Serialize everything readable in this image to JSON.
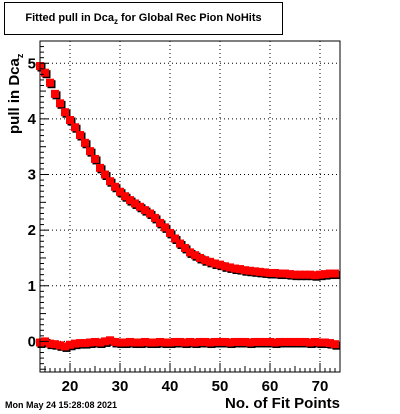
{
  "header": {
    "title_main": "Fitted pull in Dca",
    "title_sub": "z",
    "title_rest": " for Global Rec Pion NoHits"
  },
  "axes": {
    "ylabel_main": "pull in Dca",
    "ylabel_sub": "z",
    "xlabel": "No. of Fit Points"
  },
  "footer": {
    "timestamp": "Mon May 24 15:28:08 2021"
  },
  "colors": {
    "sigma_series": "#ff0000",
    "mean_series": "#ff0000",
    "shadow": "#000000",
    "grid": "#000000"
  },
  "chart_data": {
    "type": "scatter",
    "title": "Fitted pull in Dca_z for Global Rec Pion NoHits",
    "xlabel": "No. of Fit Points",
    "ylabel": "pull in Dca_z",
    "xlim": [
      14,
      74
    ],
    "ylim": [
      -0.55,
      5.4
    ],
    "xticks": [
      20,
      30,
      40,
      50,
      60,
      70
    ],
    "yticks": [
      0,
      1,
      2,
      3,
      4,
      5
    ],
    "grid": true,
    "marker": "square",
    "series": [
      {
        "x": [
          14,
          15,
          16,
          17,
          18,
          19,
          20,
          21,
          22,
          23,
          24,
          25,
          26,
          27,
          28,
          29,
          30,
          31,
          32,
          33,
          34,
          35,
          36,
          37,
          38,
          39,
          40,
          41,
          42,
          43,
          44,
          45,
          46,
          47,
          48,
          49,
          50,
          51,
          52,
          53,
          54,
          55,
          56,
          57,
          58,
          59,
          60,
          61,
          62,
          63,
          64,
          65,
          66,
          67,
          68,
          69,
          70,
          71,
          72,
          73
        ],
        "y": [
          4.95,
          4.83,
          4.65,
          4.45,
          4.28,
          4.12,
          3.98,
          3.85,
          3.71,
          3.57,
          3.42,
          3.28,
          3.12,
          3.0,
          2.88,
          2.78,
          2.69,
          2.61,
          2.54,
          2.48,
          2.42,
          2.36,
          2.3,
          2.22,
          2.13,
          2.05,
          1.95,
          1.85,
          1.76,
          1.68,
          1.6,
          1.55,
          1.5,
          1.46,
          1.43,
          1.4,
          1.38,
          1.35,
          1.33,
          1.31,
          1.3,
          1.28,
          1.27,
          1.26,
          1.25,
          1.24,
          1.23,
          1.23,
          1.22,
          1.22,
          1.21,
          1.2,
          1.2,
          1.2,
          1.2,
          1.19,
          1.2,
          1.21,
          1.22,
          1.22
        ]
      },
      {
        "x": [
          14,
          15,
          16,
          17,
          18,
          19,
          20,
          21,
          22,
          23,
          24,
          25,
          26,
          27,
          28,
          29,
          30,
          31,
          32,
          33,
          34,
          35,
          36,
          37,
          38,
          39,
          40,
          41,
          42,
          43,
          44,
          45,
          46,
          47,
          48,
          49,
          50,
          51,
          52,
          53,
          54,
          55,
          56,
          57,
          58,
          59,
          60,
          61,
          62,
          63,
          64,
          65,
          66,
          67,
          68,
          69,
          70,
          71,
          72,
          73
        ],
        "y": [
          -0.02,
          0.0,
          -0.04,
          -0.05,
          -0.07,
          -0.09,
          -0.06,
          -0.04,
          -0.03,
          -0.03,
          -0.02,
          -0.01,
          -0.02,
          0.0,
          0.02,
          -0.01,
          -0.02,
          -0.02,
          -0.01,
          -0.02,
          -0.02,
          -0.01,
          -0.02,
          -0.02,
          -0.01,
          -0.02,
          -0.02,
          -0.01,
          -0.01,
          -0.02,
          -0.01,
          -0.02,
          -0.01,
          -0.01,
          -0.02,
          -0.01,
          -0.01,
          -0.01,
          -0.02,
          -0.01,
          -0.01,
          -0.01,
          -0.02,
          -0.01,
          -0.01,
          -0.01,
          -0.01,
          -0.02,
          -0.01,
          -0.01,
          -0.01,
          -0.01,
          -0.01,
          -0.01,
          -0.02,
          -0.01,
          -0.02,
          -0.02,
          -0.03,
          -0.05
        ]
      }
    ]
  }
}
